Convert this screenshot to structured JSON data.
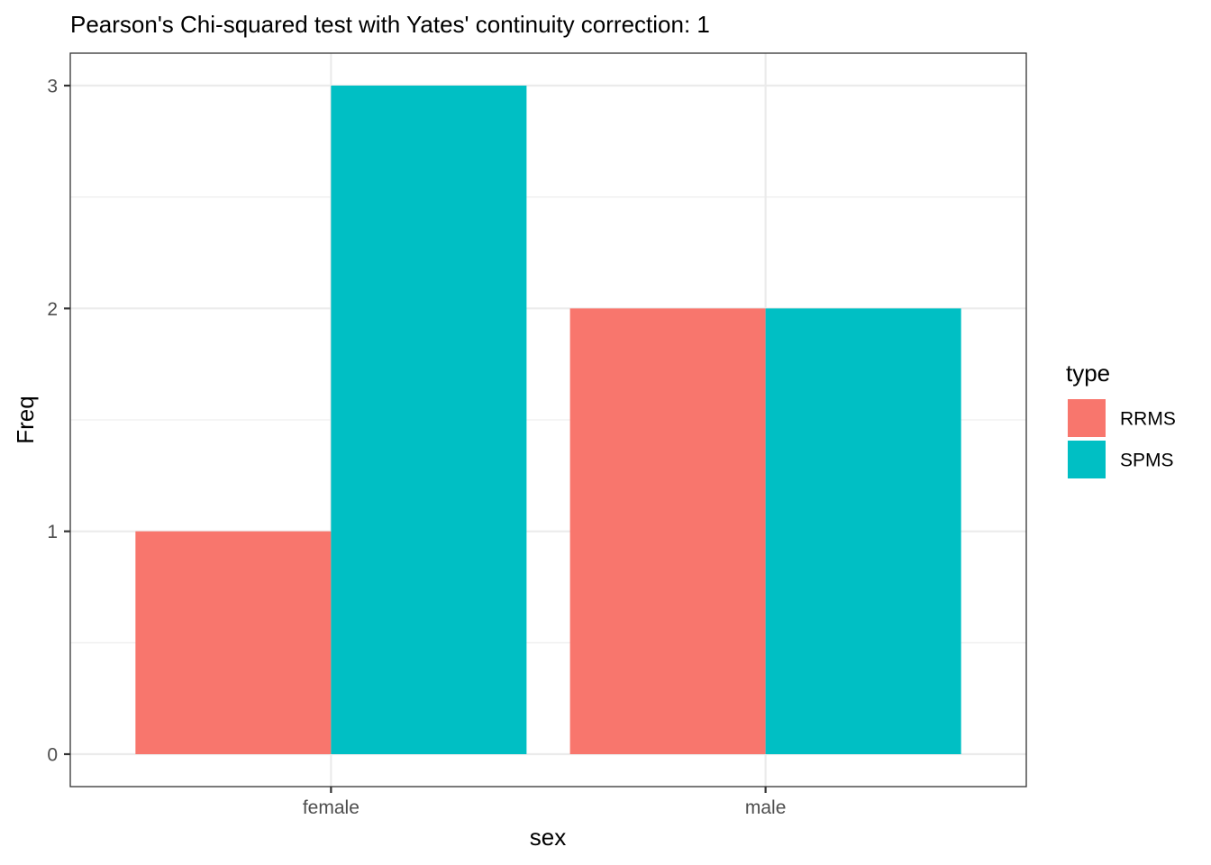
{
  "chart_data": {
    "type": "bar",
    "title": "Pearson's Chi-squared test with Yates' continuity correction: 1",
    "xlabel": "sex",
    "ylabel": "Freq",
    "categories": [
      "female",
      "male"
    ],
    "series": [
      {
        "name": "RRMS",
        "color": "#F8766D",
        "values": [
          1,
          2
        ]
      },
      {
        "name": "SPMS",
        "color": "#00BFC4",
        "values": [
          3,
          2
        ]
      }
    ],
    "ylim": [
      0,
      3
    ],
    "yticks": [
      0,
      1,
      2,
      3
    ],
    "ytick_labels": [
      "0",
      "1",
      "2",
      "3"
    ],
    "legend": {
      "title": "type",
      "position": "right"
    },
    "grid": true
  }
}
